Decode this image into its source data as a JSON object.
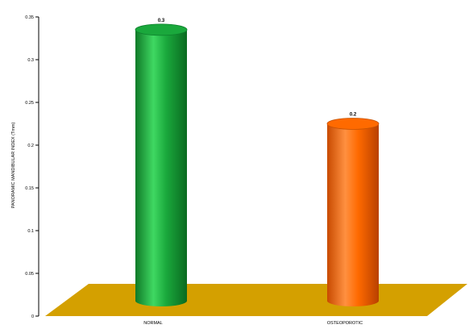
{
  "chart_data": {
    "type": "bar",
    "style": "3d-cylinder",
    "title": "",
    "ylabel": "PANORAMIC MANDIBULAR INDEX (Tmm)",
    "xlabel": "",
    "ylim": [
      0,
      0.35
    ],
    "yticks": [
      0,
      0.05,
      0.1,
      0.15,
      0.2,
      0.25,
      0.3,
      0.35
    ],
    "ytick_labels": [
      "0",
      "0.05",
      "0.1",
      "0.15",
      "0.2",
      "0.25",
      "0.3",
      "0.35"
    ],
    "categories": [
      "NORMAL",
      "OSTEOPOROTIC"
    ],
    "values": [
      0.335,
      0.225
    ],
    "data_labels": [
      "0.3",
      "0.2"
    ],
    "colors": [
      "#1aa83c",
      "#ff6a00"
    ],
    "floor_color": "#d4a000",
    "grid": false,
    "legend": "none"
  }
}
